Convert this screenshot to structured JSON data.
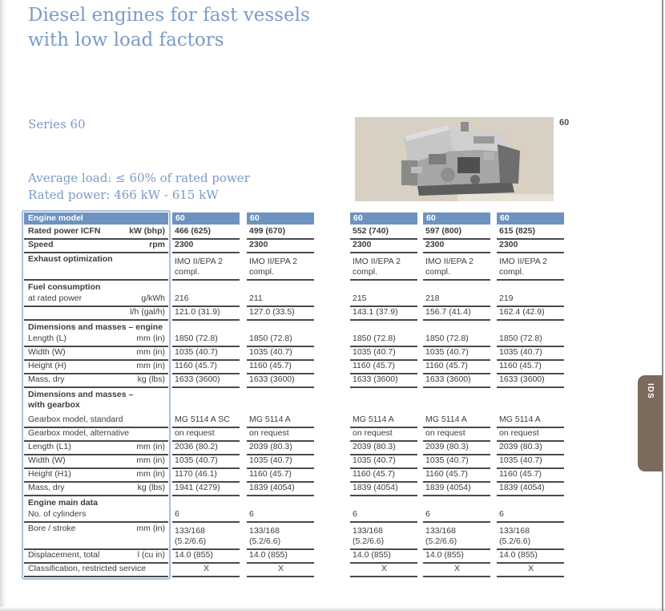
{
  "page": {
    "title_line1": "Diesel engines for fast vessels",
    "title_line2": "with low load factors",
    "series_label": "Series 60",
    "average_load": "Average load: ≤ 60% of rated power",
    "rated_power": "Rated power:  466 kW - 615 kW",
    "page_corner_label": "60",
    "side_tab_label": "IDS"
  },
  "colors": {
    "accent_blue": "#6f93c0",
    "title_blue": "#7a9bc8",
    "label_box_border": "#aabfdc",
    "rule_dark": "#4a4a4a",
    "tab_brown": "#7b6b5d",
    "photo_background": "#d7d0c3"
  },
  "table": {
    "header": {
      "label": "Engine model",
      "columns": [
        "60",
        "60",
        "60",
        "60",
        "60"
      ]
    },
    "rows": [
      {
        "type": "data",
        "label": "Rated power ICFN",
        "unit": "kW (bhp)",
        "bold": true,
        "vbold": true,
        "values": [
          "466 (625)",
          "499 (670)",
          "552 (740)",
          "597 (800)",
          "615 (825)"
        ]
      },
      {
        "type": "data",
        "label": "Speed",
        "unit": "rpm",
        "bold": true,
        "vbold": true,
        "values": [
          "2300",
          "2300",
          "2300",
          "2300",
          "2300"
        ]
      },
      {
        "type": "data2",
        "label": "Exhaust optimization",
        "unit": "",
        "bold": true,
        "values": [
          [
            "IMO II/EPA 2",
            "compl."
          ],
          [
            "IMO II/EPA 2",
            "compl."
          ],
          [
            "IMO II/EPA 2",
            "compl."
          ],
          [
            "IMO II/EPA 2",
            "compl."
          ],
          [
            "IMO II/EPA 2",
            "compl."
          ]
        ]
      },
      {
        "type": "section",
        "label": "Fuel consumption"
      },
      {
        "type": "data",
        "label": "at rated power",
        "unit": "g/kWh",
        "values": [
          "216",
          "211",
          "215",
          "218",
          "219"
        ]
      },
      {
        "type": "data",
        "label": "",
        "unit": "l/h (gal/h)",
        "values": [
          "121.0 (31.9)",
          "127.0 (33.5)",
          "143.1 (37.9)",
          "156.7 (41.4)",
          "162.4 (42.9)"
        ]
      },
      {
        "type": "section",
        "label": "Dimensions and masses – engine"
      },
      {
        "type": "data",
        "label": "Length (L)",
        "unit": "mm (in)",
        "values": [
          "1850 (72.8)",
          "1850 (72.8)",
          "1850 (72.8)",
          "1850 (72.8)",
          "1850 (72.8)"
        ]
      },
      {
        "type": "data",
        "label": "Width (W)",
        "unit": "mm (in)",
        "values": [
          "1035 (40.7)",
          "1035 (40.7)",
          "1035 (40.7)",
          "1035 (40.7)",
          "1035 (40.7)"
        ]
      },
      {
        "type": "data",
        "label": "Height (H)",
        "unit": "mm (in)",
        "values": [
          "1160 (45.7)",
          "1160 (45.7)",
          "1160 (45.7)",
          "1160 (45.7)",
          "1160 (45.7)"
        ]
      },
      {
        "type": "data",
        "label": "Mass, dry",
        "unit": "kg (lbs)",
        "values": [
          "1633 (3600)",
          "1633 (3600)",
          "1633 (3600)",
          "1633 (3600)",
          "1633 (3600)"
        ]
      },
      {
        "type": "section2",
        "label": "Dimensions and masses –",
        "label2": "with gearbox"
      },
      {
        "type": "data",
        "label": "Gearbox model, standard",
        "unit": "",
        "values": [
          "MG 5114 A SC",
          "MG 5114 A",
          "MG 5114 A",
          "MG 5114 A",
          "MG 5114 A"
        ]
      },
      {
        "type": "data",
        "label": "Gearbox model, alternative",
        "unit": "",
        "values": [
          "on request",
          "on request",
          "on request",
          "on request",
          "on request"
        ]
      },
      {
        "type": "data",
        "label": "Length (L1)",
        "unit": "mm (in)",
        "values": [
          "2036 (80.2)",
          "2039 (80.3)",
          "2039 (80.3)",
          "2039 (80.3)",
          "2039 (80.3)"
        ]
      },
      {
        "type": "data",
        "label": "Width (W)",
        "unit": "mm (in)",
        "values": [
          "1035 (40.7)",
          "1035 (40.7)",
          "1035 (40.7)",
          "1035 (40.7)",
          "1035 (40.7)"
        ]
      },
      {
        "type": "data",
        "label": "Height (H1)",
        "unit": "mm (in)",
        "values": [
          "1170 (46.1)",
          "1160 (45.7)",
          "1160 (45.7)",
          "1160 (45.7)",
          "1160 (45.7)"
        ]
      },
      {
        "type": "data",
        "label": "Mass, dry",
        "unit": "kg (lbs)",
        "values": [
          "1941 (4279)",
          "1839 (4054)",
          "1839 (4054)",
          "1839 (4054)",
          "1839 (4054)"
        ]
      },
      {
        "type": "section",
        "label": "Engine main data"
      },
      {
        "type": "data",
        "label": "No. of cylinders",
        "unit": "",
        "values": [
          "6",
          "6",
          "6",
          "6",
          "6"
        ]
      },
      {
        "type": "data2",
        "label": "Bore / stroke",
        "unit": "mm (in)",
        "values": [
          [
            "133/168",
            "(5.2/6.6)"
          ],
          [
            "133/168",
            "(5.2/6.6)"
          ],
          [
            "133/168",
            "(5.2/6.6)"
          ],
          [
            "133/168",
            "(5.2/6.6)"
          ],
          [
            "133/168",
            "(5.2/6.6)"
          ]
        ]
      },
      {
        "type": "data",
        "label": "Displacement, total",
        "unit": "l (cu in)",
        "values": [
          "14.0 (855)",
          "14.0 (855)",
          "14.0 (855)",
          "14.0 (855)",
          "14.0 (855)"
        ]
      },
      {
        "type": "data",
        "label": "Classification, restricted service",
        "unit": "",
        "center": true,
        "values": [
          "X",
          "X",
          "X",
          "X",
          "X"
        ]
      }
    ]
  }
}
